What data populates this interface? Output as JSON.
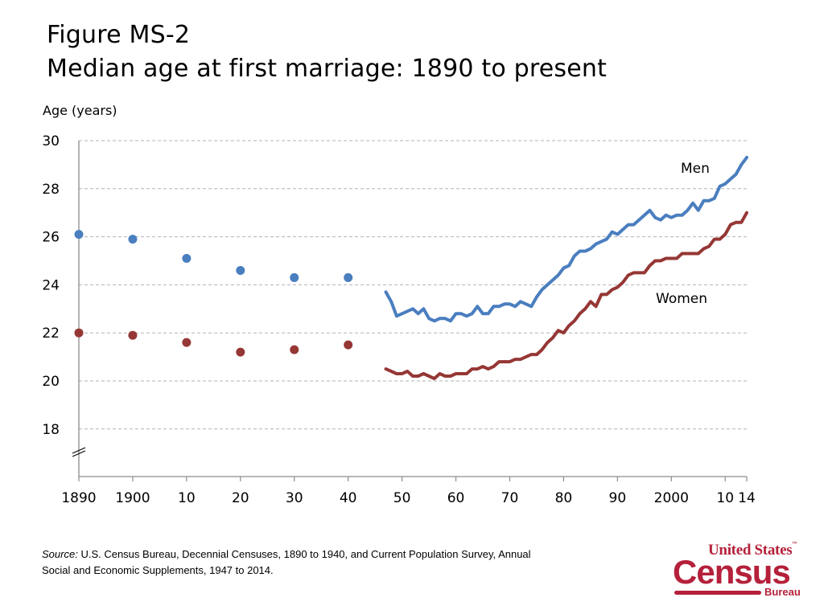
{
  "header": {
    "figure_id": "Figure MS-2",
    "subtitle": "Median age at first marriage: 1890 to present"
  },
  "chart_data": {
    "type": "line",
    "title": "Median age at first marriage: 1890 to present",
    "xlabel": "",
    "ylabel": "Age (years)",
    "ylim": [
      17,
      30
    ],
    "yticks": [
      18,
      20,
      22,
      24,
      26,
      28,
      30
    ],
    "y_axis_break": true,
    "xlim": [
      1890,
      2014
    ],
    "xticks": [
      1890,
      1900,
      1910,
      1920,
      1930,
      1940,
      1950,
      1960,
      1970,
      1980,
      1990,
      2000,
      2010,
      2014
    ],
    "xtick_labels": [
      "1890",
      "1900",
      "10",
      "20",
      "30",
      "40",
      "50",
      "60",
      "70",
      "80",
      "90",
      "2000",
      "10",
      "14"
    ],
    "grid": "horizontal dashed",
    "series": [
      {
        "name": "Men",
        "color": "#4a7ebf",
        "census_points": {
          "x": [
            1890,
            1900,
            1910,
            1920,
            1930,
            1940
          ],
          "values": [
            26.1,
            25.9,
            25.1,
            24.6,
            24.3,
            24.3
          ]
        },
        "annual_line": {
          "x_start": 1947,
          "x_end": 2014,
          "values": [
            23.7,
            23.3,
            22.7,
            22.8,
            22.9,
            23.0,
            22.8,
            23.0,
            22.6,
            22.5,
            22.6,
            22.6,
            22.5,
            22.8,
            22.8,
            22.7,
            22.8,
            23.1,
            22.8,
            22.8,
            23.1,
            23.1,
            23.2,
            23.2,
            23.1,
            23.3,
            23.2,
            23.1,
            23.5,
            23.8,
            24.0,
            24.2,
            24.4,
            24.7,
            24.8,
            25.2,
            25.4,
            25.4,
            25.5,
            25.7,
            25.8,
            25.9,
            26.2,
            26.1,
            26.3,
            26.5,
            26.5,
            26.7,
            26.9,
            27.1,
            26.8,
            26.7,
            26.9,
            26.8,
            26.9,
            26.9,
            27.1,
            27.4,
            27.1,
            27.5,
            27.5,
            27.6,
            28.1,
            28.2,
            28.4,
            28.6,
            29.0,
            29.3
          ]
        }
      },
      {
        "name": "Women",
        "color": "#953735",
        "census_points": {
          "x": [
            1890,
            1900,
            1910,
            1920,
            1930,
            1940
          ],
          "values": [
            22.0,
            21.9,
            21.6,
            21.2,
            21.3,
            21.5
          ]
        },
        "annual_line": {
          "x_start": 1947,
          "x_end": 2014,
          "values": [
            20.5,
            20.4,
            20.3,
            20.3,
            20.4,
            20.2,
            20.2,
            20.3,
            20.2,
            20.1,
            20.3,
            20.2,
            20.2,
            20.3,
            20.3,
            20.3,
            20.5,
            20.5,
            20.6,
            20.5,
            20.6,
            20.8,
            20.8,
            20.8,
            20.9,
            20.9,
            21.0,
            21.1,
            21.1,
            21.3,
            21.6,
            21.8,
            22.1,
            22.0,
            22.3,
            22.5,
            22.8,
            23.0,
            23.3,
            23.1,
            23.6,
            23.6,
            23.8,
            23.9,
            24.1,
            24.4,
            24.5,
            24.5,
            24.5,
            24.8,
            25.0,
            25.0,
            25.1,
            25.1,
            25.1,
            25.3,
            25.3,
            25.3,
            25.3,
            25.5,
            25.6,
            25.9,
            25.9,
            26.1,
            26.5,
            26.6,
            26.6,
            27.0
          ]
        }
      }
    ],
    "annotations": [
      "Men",
      "Women"
    ]
  },
  "source": {
    "label": "Source:",
    "line1": "U.S. Census Bureau, Decennial Censuses, 1890 to 1940, and Current Population Survey, Annual",
    "line2": "Social and Economic Supplements, 1947 to 2014."
  },
  "logo": {
    "line1": "United States",
    "trademark": "™",
    "line2": "Census",
    "line3": "Bureau",
    "color": "#b5203a"
  }
}
